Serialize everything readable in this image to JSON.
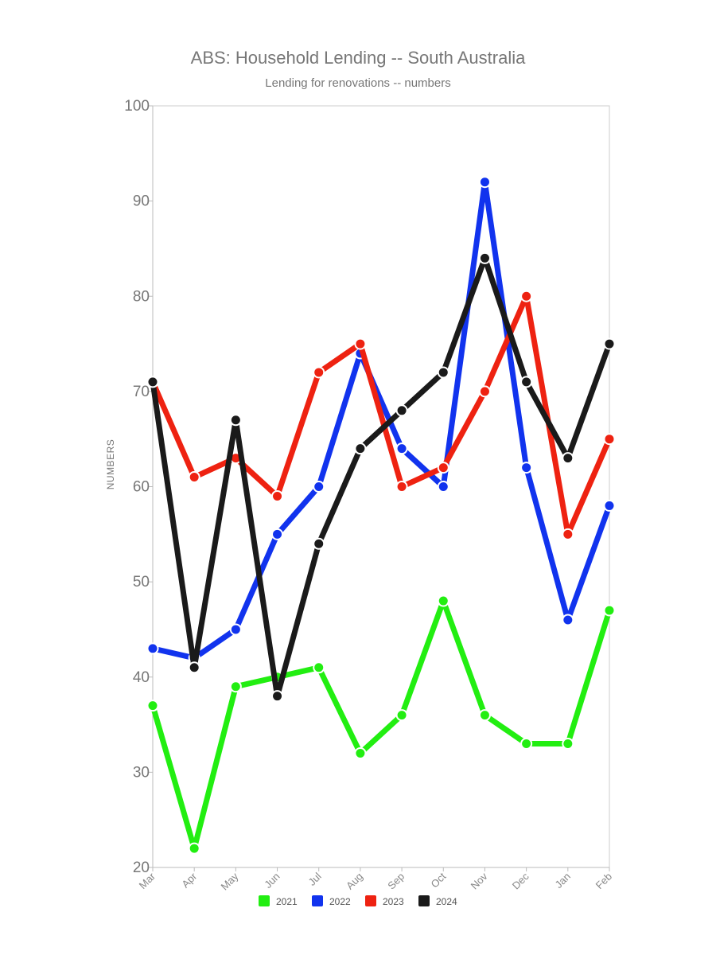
{
  "chart_data": {
    "type": "line",
    "title": "ABS: Household Lending -- South Australia",
    "subtitle": "Lending for renovations -- numbers",
    "xlabel": "",
    "ylabel": "NUMBERS",
    "ylim": [
      20,
      100
    ],
    "yticks": [
      20,
      30,
      40,
      50,
      60,
      70,
      80,
      90,
      100
    ],
    "categories": [
      "Mar",
      "Apr",
      "May",
      "Jun",
      "Jul",
      "Aug",
      "Sep",
      "Oct",
      "Nov",
      "Dec",
      "Jan",
      "Feb"
    ],
    "grid": false,
    "legend_position": "bottom",
    "series": [
      {
        "name": "2021",
        "color": "#22ee11",
        "values": [
          37,
          22,
          39,
          40,
          41,
          32,
          36,
          48,
          36,
          33,
          33,
          47
        ]
      },
      {
        "name": "2022",
        "color": "#1133ee",
        "values": [
          43,
          42,
          45,
          55,
          60,
          74,
          64,
          60,
          92,
          62,
          46,
          58
        ]
      },
      {
        "name": "2023",
        "color": "#ee2211",
        "values": [
          71,
          61,
          63,
          59,
          72,
          75,
          60,
          62,
          70,
          80,
          55,
          65
        ]
      },
      {
        "name": "2024",
        "color": "#1a1a1a",
        "values": [
          71,
          41,
          67,
          38,
          54,
          64,
          68,
          72,
          84,
          71,
          63,
          75
        ]
      }
    ]
  }
}
